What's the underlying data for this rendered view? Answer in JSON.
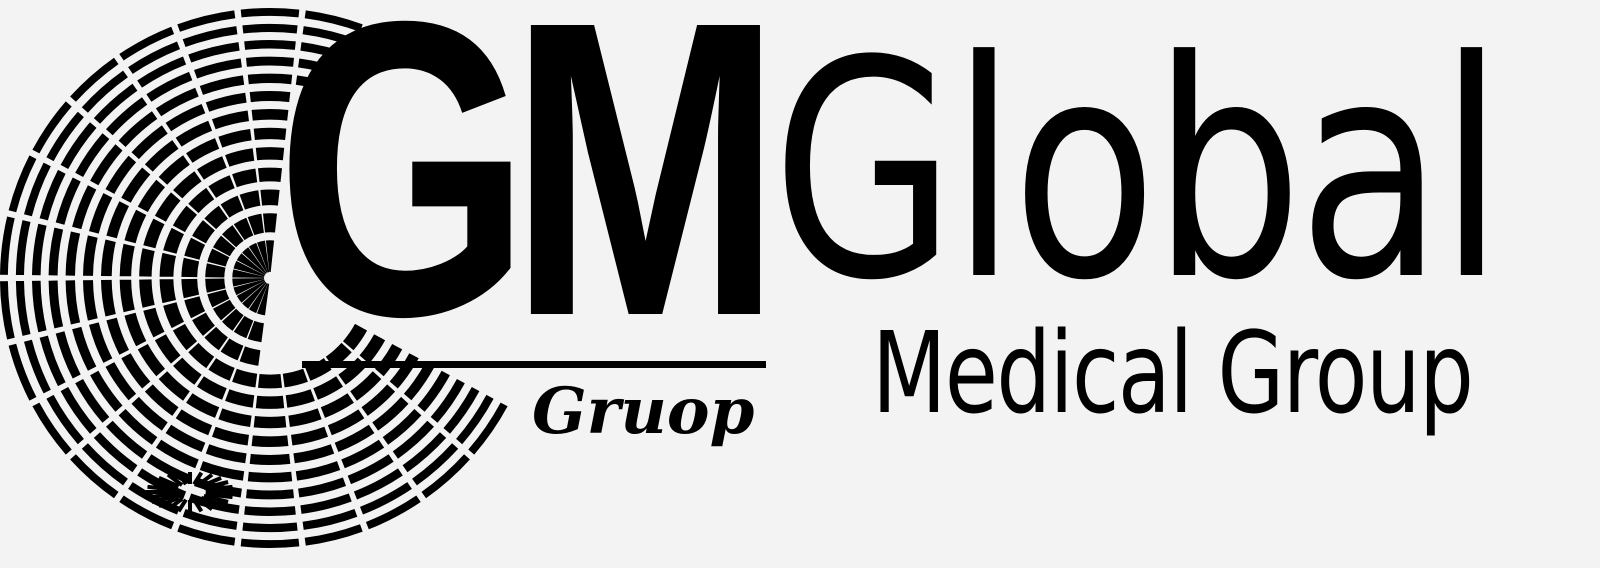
{
  "logo": {
    "mark": "GM",
    "mark_script": "Gruop",
    "name": "Global",
    "tagline": "Medical Group",
    "icon": "globe-grid-icon",
    "colors": {
      "ink": "#000000",
      "background": "#f3f3f3"
    }
  }
}
